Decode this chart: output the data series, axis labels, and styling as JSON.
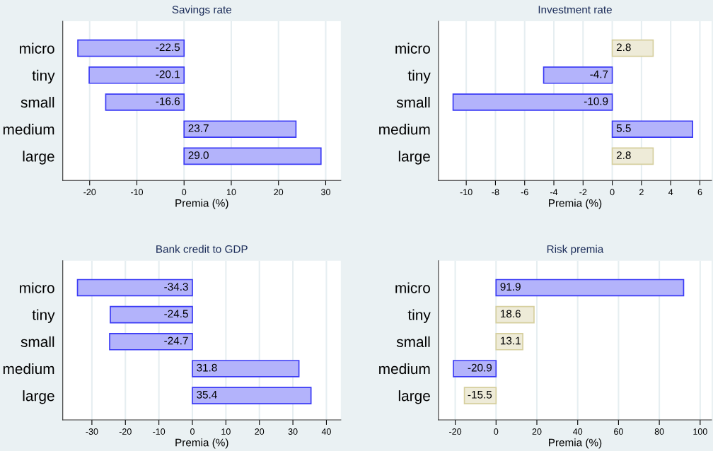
{
  "chart_data": [
    {
      "type": "bar",
      "orientation": "horizontal",
      "title": "Savings rate",
      "xlabel": "Premia (%)",
      "categories": [
        "micro",
        "tiny",
        "small",
        "medium",
        "large"
      ],
      "values": [
        -22.5,
        -20.1,
        -16.6,
        23.7,
        29.0
      ],
      "value_labels": [
        "-22.5",
        "-20.1",
        "-16.6",
        "23.7",
        "29.0"
      ],
      "colors": [
        "#b3b3fb",
        "#b3b3fb",
        "#b3b3fb",
        "#b3b3fb",
        "#b3b3fb"
      ],
      "xlim": [
        -25.7,
        33.2
      ],
      "xticks": [
        {
          "value": -20,
          "label": "-20"
        },
        {
          "value": -10,
          "label": "-10"
        },
        0,
        10,
        20,
        30
      ],
      "grid": "x"
    },
    {
      "type": "bar",
      "orientation": "horizontal",
      "title": "Investment rate",
      "xlabel": "Premia (%)",
      "categories": [
        "micro",
        "tiny",
        "small",
        "medium",
        "large"
      ],
      "values": [
        2.8,
        -4.7,
        -10.9,
        5.5,
        2.8
      ],
      "value_labels": [
        "2.8",
        "-4.7",
        "-10.9",
        "5.5",
        "2.8"
      ],
      "colors": [
        "#eeebd8",
        "#b3b3fb",
        "#b3b3fb",
        "#b3b3fb",
        "#eeebd8"
      ],
      "xlim": [
        -11.9,
        6.8
      ],
      "xticks": [
        {
          "value": -10,
          "label": "-10"
        },
        {
          "value": -8,
          "label": "-8"
        },
        {
          "value": -6,
          "label": "-6"
        },
        {
          "value": -4,
          "label": "-4"
        },
        {
          "value": -2,
          "label": "-2"
        },
        0,
        2,
        4,
        6
      ],
      "grid": "x"
    },
    {
      "type": "bar",
      "orientation": "horizontal",
      "title": "Bank credit to GDP",
      "xlabel": "Premia (%)",
      "categories": [
        "micro",
        "tiny",
        "small",
        "medium",
        "large"
      ],
      "values": [
        -34.3,
        -24.5,
        -24.7,
        31.8,
        35.4
      ],
      "value_labels": [
        "-34.3",
        "-24.5",
        "-24.7",
        "31.8",
        "35.4"
      ],
      "colors": [
        "#b3b3fb",
        "#b3b3fb",
        "#b3b3fb",
        "#b3b3fb",
        "#b3b3fb"
      ],
      "xlim": [
        -38.7,
        44.3
      ],
      "xticks": [
        {
          "value": -30,
          "label": "-30"
        },
        {
          "value": -20,
          "label": "-20"
        },
        {
          "value": -10,
          "label": "-10"
        },
        0,
        10,
        20,
        30,
        40
      ],
      "grid": "x"
    },
    {
      "type": "bar",
      "orientation": "horizontal",
      "title": "Risk premia",
      "xlabel": "Premia (%)",
      "categories": [
        "micro",
        "tiny",
        "small",
        "medium",
        "large"
      ],
      "values": [
        91.9,
        18.6,
        13.1,
        -20.9,
        -15.5
      ],
      "value_labels": [
        "91.9",
        "18.6",
        "13.1",
        "-20.9",
        "-15.5"
      ],
      "colors": [
        "#b3b3fb",
        "#eeebd8",
        "#eeebd8",
        "#b3b3fb",
        "#eeebd8"
      ],
      "xlim": [
        -28.2,
        105.6
      ],
      "xticks": [
        {
          "value": -20,
          "label": "-20"
        },
        0,
        20,
        40,
        60,
        80,
        100
      ],
      "grid": "x"
    }
  ]
}
